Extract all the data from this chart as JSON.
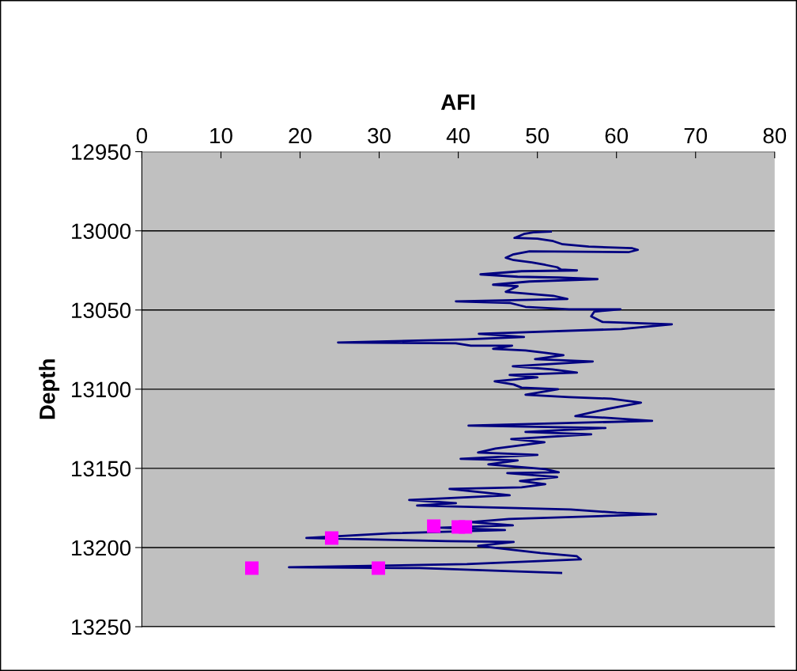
{
  "chart_data": {
    "type": "line",
    "xlabel": "AFI",
    "ylabel": "Depth",
    "xlim": [
      0,
      80
    ],
    "xticks": [
      0,
      10,
      20,
      30,
      40,
      50,
      60,
      70,
      80
    ],
    "ylim": [
      13250,
      12950
    ],
    "yticks": [
      12950,
      13000,
      13050,
      13100,
      13150,
      13200,
      13250
    ],
    "grid": "y",
    "series": [
      {
        "color": "#000080",
        "marker": "none",
        "line_style": "solid",
        "x": [
          51.7,
          49.5,
          48.3,
          47.1,
          50.0,
          52.0,
          53.2,
          56.5,
          62.0,
          62.7,
          61.5,
          49.0,
          46.9,
          46.0,
          47.0,
          49.3,
          51.0,
          52.5,
          53.0,
          55.0,
          48.0,
          42.8,
          47.5,
          52.7,
          57.6,
          49.0,
          44.4,
          47.5,
          46.0,
          52.0,
          53.8,
          39.7,
          46.5,
          48.5,
          54.0,
          60.5,
          57.2,
          56.8,
          58.2,
          67.0,
          60.6,
          42.6,
          48.3,
          41.0,
          24.8,
          39.7,
          41.6,
          46.8,
          44.4,
          48.5,
          51.0,
          53.3,
          49.7,
          57.0,
          46.9,
          51.9,
          55.0,
          46.5,
          50.0,
          44.6,
          47.0,
          48.0,
          52.6,
          48.5,
          54.0,
          59.3,
          63.1,
          58.8,
          54.8,
          58.6,
          64.5,
          41.3,
          58.6,
          48.5,
          56.8,
          46.7,
          50.9,
          44.7,
          42.5,
          50.0,
          40.3,
          47.5,
          43.8,
          51.0,
          52.7,
          46.2,
          52.5,
          47.8,
          51.0,
          48.0,
          38.9,
          46.5,
          33.8,
          39.7,
          34.8,
          54.2,
          60.0,
          65.0,
          46.4,
          41.5,
          46.9,
          37.8,
          45.9,
          31.6,
          20.8,
          38.6,
          47.0,
          42.5,
          50.4,
          55.0,
          55.5,
          41.1,
          18.6,
          35.1,
          53.0
        ],
        "values": [
          13000.5,
          13001,
          13002,
          13004.5,
          13005,
          13006.5,
          13008.5,
          13010,
          13011,
          13012,
          13013.5,
          13013,
          13015,
          13017,
          13018.5,
          13020,
          13021.5,
          13023,
          13024.5,
          13025,
          13025.5,
          13027.5,
          13029,
          13029.5,
          13030.5,
          13032,
          13034,
          13035,
          13038.5,
          13041,
          13043,
          13044.5,
          13045.5,
          13048,
          13049.5,
          13049.5,
          13051,
          13054,
          13057.5,
          13059,
          13062,
          13065,
          13067,
          13068.5,
          13070.5,
          13071,
          13072.5,
          13072.5,
          13074.5,
          13075.5,
          13077,
          13078.5,
          13081,
          13082.5,
          13085.5,
          13087.5,
          13089.5,
          13091,
          13092.5,
          13095,
          13097,
          13099,
          13100,
          13103.5,
          13105,
          13106,
          13108.5,
          13112.5,
          13117,
          13118,
          13120,
          13123,
          13124.5,
          13127,
          13128.5,
          13131.5,
          13133.5,
          13137.5,
          13140,
          13141.5,
          13144,
          13145,
          13147.5,
          13150.5,
          13152.5,
          13153,
          13155.5,
          13158,
          13160,
          13162,
          13163,
          13167,
          13170,
          13172,
          13173.5,
          13176,
          13178,
          13179,
          13182,
          13184,
          13186,
          13187.5,
          13189,
          13191,
          13194,
          13196,
          13196.5,
          13199,
          13203.5,
          13205.5,
          13207.5,
          13210.5,
          13212.5,
          13213,
          13216
        ]
      },
      {
        "type": "scatter",
        "color": "#ff00ff",
        "marker": "square",
        "x": [
          13.9,
          24.0,
          36.9,
          40.0,
          40.9,
          29.9
        ],
        "values": [
          13213,
          13194,
          13186.5,
          13187,
          13187,
          13213
        ]
      }
    ]
  }
}
